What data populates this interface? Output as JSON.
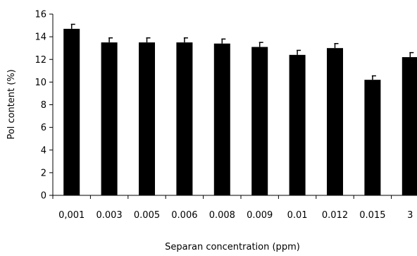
{
  "chart_data": {
    "type": "bar",
    "title": "",
    "xlabel": "Separan concentration (ppm)",
    "ylabel": "Pol content (%)",
    "ylim": [
      0,
      16
    ],
    "yticks": [
      0,
      2,
      4,
      6,
      8,
      10,
      12,
      14,
      16
    ],
    "categories": [
      "0,001",
      "0.003",
      "0.005",
      "0.006",
      "0.008",
      "0.009",
      "0.01",
      "0.012",
      "0.015",
      "3"
    ],
    "values": [
      14.7,
      13.5,
      13.5,
      13.5,
      13.4,
      13.1,
      12.4,
      13.0,
      10.2,
      12.2
    ],
    "errors": [
      0.4,
      0.4,
      0.4,
      0.4,
      0.4,
      0.4,
      0.4,
      0.4,
      0.35,
      0.4
    ],
    "grid": false,
    "legend": "none",
    "bar_color": "#000000"
  }
}
